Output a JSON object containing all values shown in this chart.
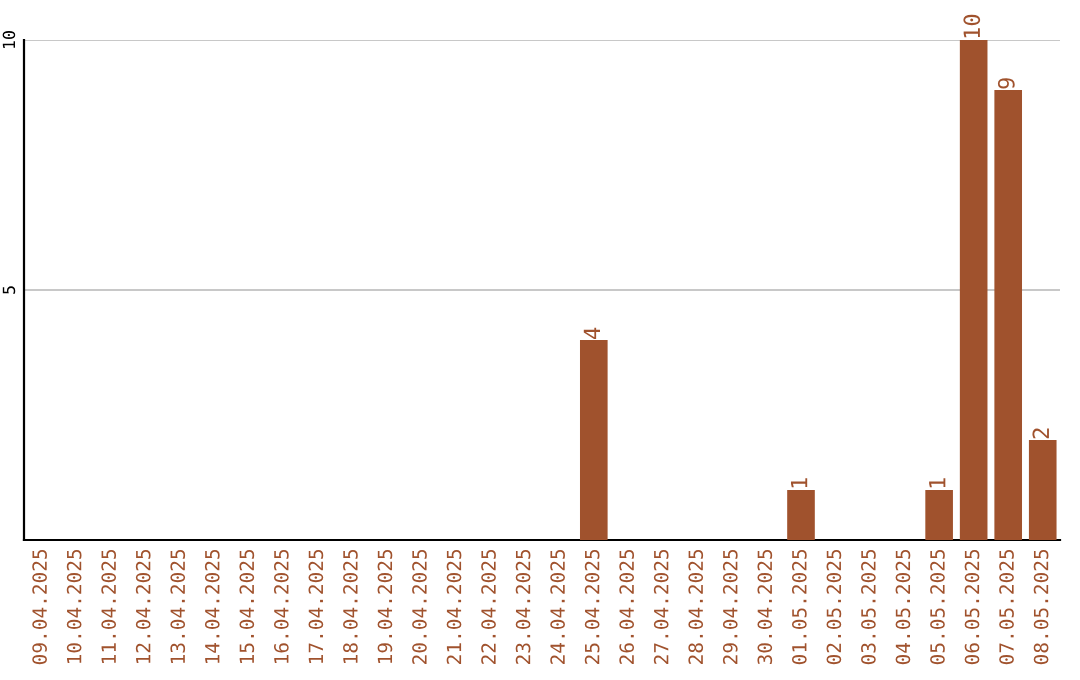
{
  "chart_data": {
    "type": "bar",
    "categories": [
      "09.04.2025",
      "10.04.2025",
      "11.04.2025",
      "12.04.2025",
      "13.04.2025",
      "14.04.2025",
      "15.04.2025",
      "16.04.2025",
      "17.04.2025",
      "18.04.2025",
      "19.04.2025",
      "20.04.2025",
      "21.04.2025",
      "22.04.2025",
      "23.04.2025",
      "24.04.2025",
      "25.04.2025",
      "26.04.2025",
      "27.04.2025",
      "28.04.2025",
      "29.04.2025",
      "30.04.2025",
      "01.05.2025",
      "02.05.2025",
      "03.05.2025",
      "04.05.2025",
      "05.05.2025",
      "06.05.2025",
      "07.05.2025",
      "08.05.2025"
    ],
    "values": [
      0,
      0,
      0,
      0,
      0,
      0,
      0,
      0,
      0,
      0,
      0,
      0,
      0,
      0,
      0,
      0,
      4,
      0,
      0,
      0,
      0,
      0,
      1,
      0,
      0,
      0,
      1,
      10,
      9,
      2
    ],
    "value_labels": [
      null,
      null,
      null,
      null,
      null,
      null,
      null,
      null,
      null,
      null,
      null,
      null,
      null,
      null,
      null,
      null,
      "4",
      null,
      null,
      null,
      null,
      null,
      "1",
      null,
      null,
      null,
      "1",
      "10",
      "9",
      "2"
    ],
    "color": "#a0522d",
    "ylim": [
      0,
      10
    ],
    "yticks": [
      5,
      10
    ],
    "grid": "y",
    "legend": false
  }
}
